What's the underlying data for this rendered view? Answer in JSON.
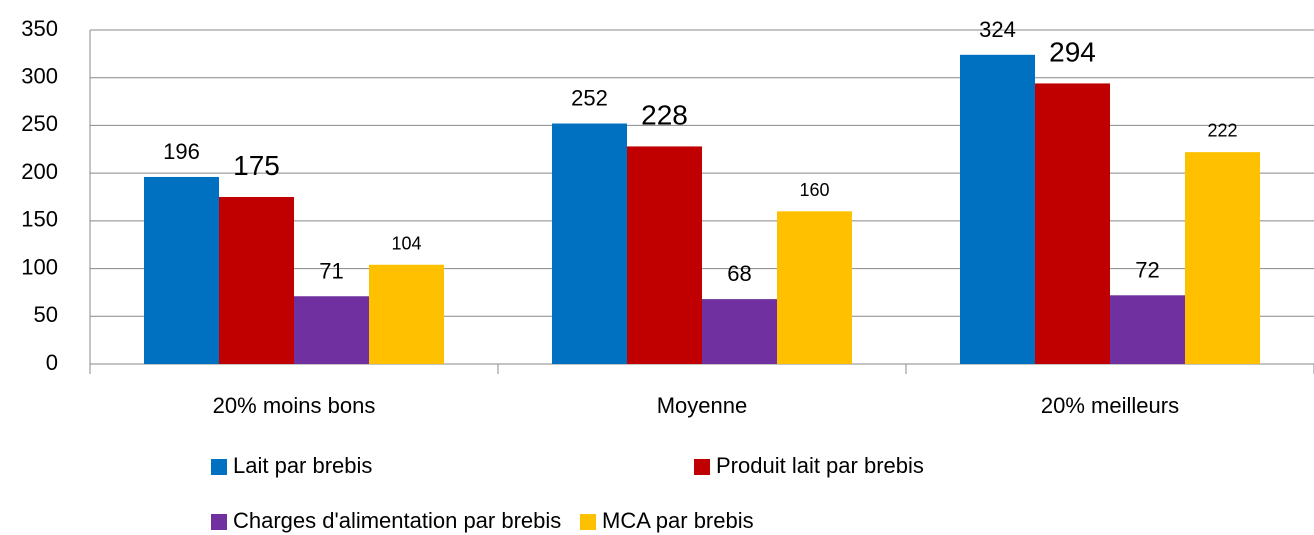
{
  "chart_data": {
    "type": "bar",
    "categories": [
      "20% moins bons",
      "Moyenne",
      "20% meilleurs"
    ],
    "series": [
      {
        "name": "Lait par brebis",
        "color": "#0070c0",
        "values": [
          196,
          252,
          324
        ]
      },
      {
        "name": "Produit lait par brebis",
        "color": "#c00000",
        "values": [
          175,
          228,
          294
        ]
      },
      {
        "name": "Charges d'alimentation par brebis",
        "color": "#7030a0",
        "values": [
          71,
          68,
          72
        ]
      },
      {
        "name": "MCA par brebis",
        "color": "#ffc000",
        "values": [
          104,
          160,
          222
        ]
      }
    ],
    "ylim": [
      0,
      350
    ],
    "yticks": [
      0,
      50,
      100,
      150,
      200,
      250,
      300,
      350
    ],
    "grid": true,
    "legend": "bottom"
  }
}
